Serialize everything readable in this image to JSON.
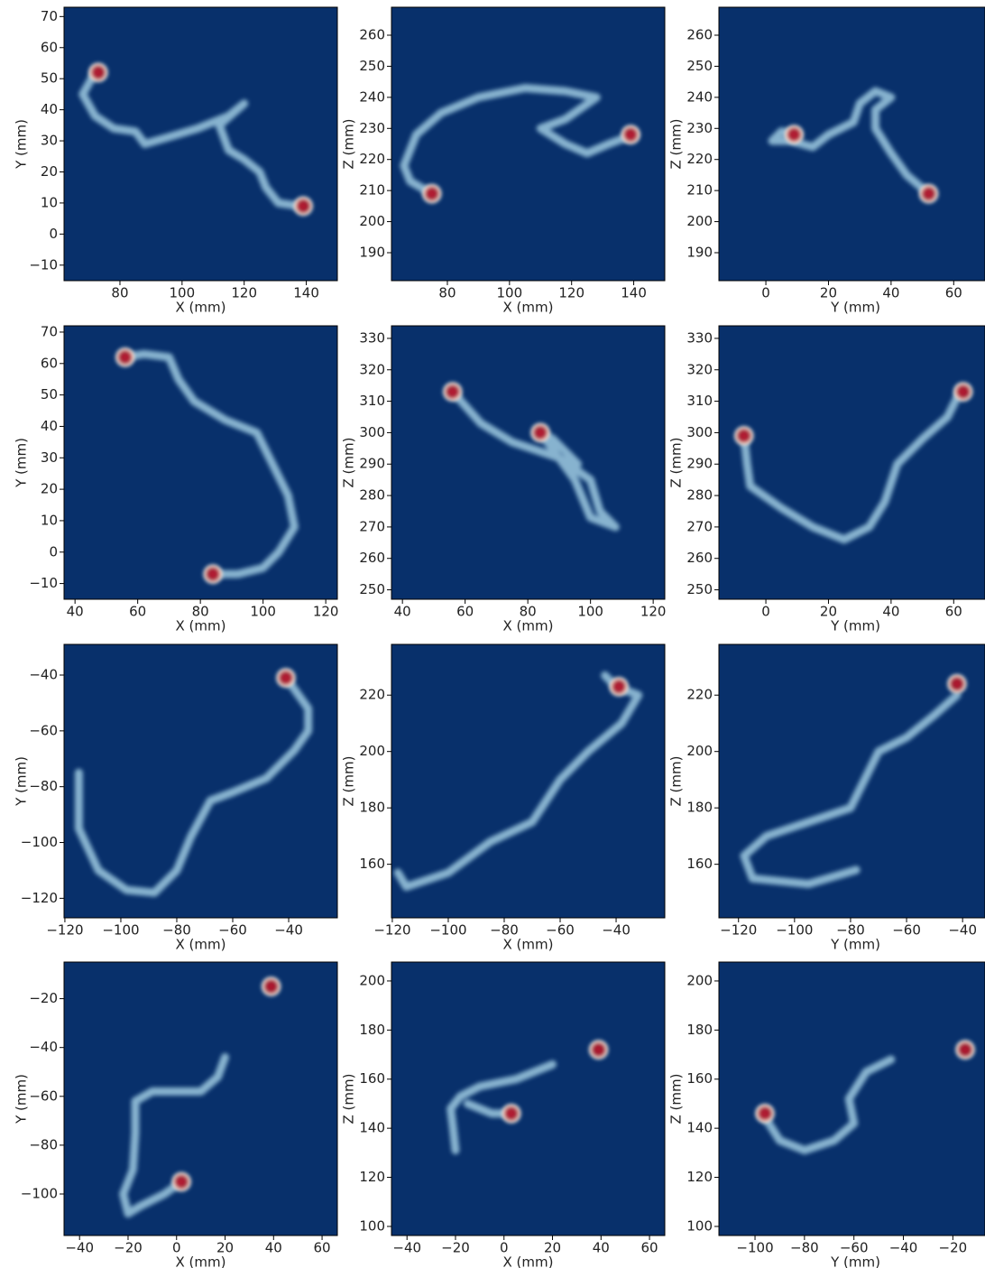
{
  "chart_data": [
    {
      "type": "heatmap",
      "xlabel": "X (mm)",
      "ylabel": "Y (mm)",
      "colors": {
        "background": "#08306b",
        "trace": "#9ecae1",
        "peak": "#b2182b"
      },
      "x": [
        72,
        68,
        72,
        78,
        85,
        88,
        95,
        105,
        115,
        120,
        112,
        115,
        120,
        125,
        127,
        131,
        138
      ],
      "y": [
        52,
        45,
        38,
        34,
        33,
        29,
        31,
        34,
        38,
        42,
        35,
        27,
        24,
        20,
        15,
        10,
        9
      ],
      "hotspots": {
        "x": [
          73,
          139
        ],
        "y": [
          52,
          9
        ]
      },
      "xlim": [
        62,
        150
      ],
      "xticks": [
        80,
        100,
        120,
        140
      ],
      "ylim": [
        -15,
        73
      ],
      "yticks": [
        {
          "value": -10,
          "label": "−10"
        },
        0,
        10,
        20,
        30,
        40,
        50,
        60,
        70
      ]
    },
    {
      "type": "heatmap",
      "xlabel": "X (mm)",
      "ylabel": "Z (mm)",
      "colors": {
        "background": "#08306b",
        "trace": "#9ecae1",
        "peak": "#b2182b"
      },
      "x": [
        75,
        68,
        66,
        70,
        78,
        90,
        105,
        118,
        128,
        118,
        110,
        118,
        125,
        132,
        140
      ],
      "y": [
        209,
        213,
        218,
        228,
        235,
        240,
        243,
        242,
        240,
        233,
        230,
        225,
        222,
        225,
        228
      ],
      "hotspots": {
        "x": [
          75,
          139
        ],
        "y": [
          209,
          228
        ]
      },
      "xlim": [
        62,
        150
      ],
      "xticks": [
        80,
        100,
        120,
        140
      ],
      "ylim": [
        181,
        269
      ],
      "yticks": [
        190,
        200,
        210,
        220,
        230,
        240,
        250,
        260
      ]
    },
    {
      "type": "heatmap",
      "xlabel": "Y (mm)",
      "ylabel": "Z (mm)",
      "colors": {
        "background": "#08306b",
        "trace": "#9ecae1",
        "peak": "#b2182b"
      },
      "x": [
        52,
        45,
        40,
        35,
        35,
        40,
        35,
        30,
        28,
        20,
        15,
        8,
        2,
        5,
        10
      ],
      "y": [
        209,
        215,
        222,
        230,
        236,
        240,
        242,
        238,
        232,
        228,
        224,
        226,
        226,
        229,
        228
      ],
      "hotspots": {
        "x": [
          9,
          52
        ],
        "y": [
          228,
          209
        ]
      },
      "xlim": [
        -15,
        70
      ],
      "xticks": [
        0,
        20,
        40,
        60
      ],
      "ylim": [
        181,
        269
      ],
      "yticks": [
        190,
        200,
        210,
        220,
        230,
        240,
        250,
        260
      ]
    },
    {
      "type": "heatmap",
      "xlabel": "X (mm)",
      "ylabel": "Y (mm)",
      "colors": {
        "background": "#08306b",
        "trace": "#9ecae1",
        "peak": "#b2182b"
      },
      "x": [
        56,
        62,
        70,
        73,
        78,
        88,
        98,
        103,
        108,
        110,
        105,
        100,
        92,
        84
      ],
      "y": [
        62,
        63,
        62,
        55,
        48,
        42,
        38,
        28,
        18,
        8,
        0,
        -5,
        -7,
        -7
      ],
      "hotspots": {
        "x": [
          56,
          84
        ],
        "y": [
          62,
          -7
        ]
      },
      "xlim": [
        36.5,
        123.7
      ],
      "xticks": [
        40,
        60,
        80,
        100,
        120
      ],
      "ylim": [
        -15,
        72
      ],
      "yticks": [
        {
          "value": -10,
          "label": "−10"
        },
        0,
        10,
        20,
        30,
        40,
        50,
        60,
        70
      ]
    },
    {
      "type": "heatmap",
      "xlabel": "X (mm)",
      "ylabel": "Z (mm)",
      "colors": {
        "background": "#08306b",
        "trace": "#9ecae1",
        "peak": "#b2182b"
      },
      "x": [
        56,
        65,
        75,
        90,
        100,
        103,
        108,
        100,
        95,
        84,
        88,
        96
      ],
      "y": [
        313,
        303,
        297,
        292,
        285,
        275,
        270,
        273,
        285,
        300,
        298,
        290
      ],
      "hotspots": {
        "x": [
          56,
          84
        ],
        "y": [
          313,
          300
        ]
      },
      "xlim": [
        36.5,
        123.7
      ],
      "xticks": [
        40,
        60,
        80,
        100,
        120
      ],
      "ylim": [
        247,
        334
      ],
      "yticks": [
        250,
        260,
        270,
        280,
        290,
        300,
        310,
        320,
        330
      ]
    },
    {
      "type": "heatmap",
      "xlabel": "Y (mm)",
      "ylabel": "Z (mm)",
      "colors": {
        "background": "#08306b",
        "trace": "#9ecae1",
        "peak": "#b2182b"
      },
      "x": [
        -7,
        -6,
        -5,
        5,
        15,
        25,
        33,
        38,
        42,
        50,
        58,
        62
      ],
      "y": [
        299,
        290,
        283,
        276,
        270,
        266,
        270,
        278,
        290,
        298,
        305,
        313
      ],
      "hotspots": {
        "x": [
          -7,
          63
        ],
        "y": [
          299,
          313
        ]
      },
      "xlim": [
        -15,
        70
      ],
      "xticks": [
        0,
        20,
        40,
        60
      ],
      "ylim": [
        247,
        334
      ],
      "yticks": [
        250,
        260,
        270,
        280,
        290,
        300,
        310,
        320,
        330
      ]
    },
    {
      "type": "heatmap",
      "xlabel": "X (mm)",
      "ylabel": "Y (mm)",
      "colors": {
        "background": "#08306b",
        "trace": "#9ecae1",
        "peak": "#b2182b"
      },
      "x": [
        -115,
        -115,
        -108,
        -98,
        -88,
        -80,
        -75,
        -68,
        -60,
        -48,
        -38,
        -33,
        -33,
        -38,
        -41
      ],
      "y": [
        -75,
        -95,
        -110,
        -117,
        -118,
        -110,
        -98,
        -85,
        -82,
        -77,
        -67,
        -60,
        -52,
        -45,
        -41
      ],
      "hotspots": {
        "x": [
          -41
        ],
        "y": [
          -41
        ]
      },
      "xlim": [
        -120.3,
        -22.6
      ],
      "xticks": [
        {
          "value": -120,
          "label": "−120"
        },
        {
          "value": -100,
          "label": "−100"
        },
        {
          "value": -80,
          "label": "−80"
        },
        {
          "value": -60,
          "label": "−60"
        },
        {
          "value": -40,
          "label": "−40"
        }
      ],
      "ylim": [
        -127,
        -29
      ],
      "yticks": [
        {
          "value": -120,
          "label": "−120"
        },
        {
          "value": -100,
          "label": "−100"
        },
        {
          "value": -80,
          "label": "−80"
        },
        {
          "value": -60,
          "label": "−60"
        },
        {
          "value": -40,
          "label": "−40"
        }
      ]
    },
    {
      "type": "heatmap",
      "xlabel": "X (mm)",
      "ylabel": "Z (mm)",
      "colors": {
        "background": "#08306b",
        "trace": "#9ecae1",
        "peak": "#b2182b"
      },
      "x": [
        -118,
        -115,
        -100,
        -85,
        -70,
        -60,
        -50,
        -38,
        -32,
        -40,
        -44
      ],
      "y": [
        157,
        152,
        157,
        168,
        175,
        190,
        200,
        210,
        220,
        223,
        227
      ],
      "hotspots": {
        "x": [
          -39
        ],
        "y": [
          223
        ]
      },
      "xlim": [
        -120.3,
        -22.6
      ],
      "xticks": [
        {
          "value": -120,
          "label": "−120"
        },
        {
          "value": -100,
          "label": "−100"
        },
        {
          "value": -80,
          "label": "−80"
        },
        {
          "value": -60,
          "label": "−60"
        },
        {
          "value": -40,
          "label": "−40"
        }
      ],
      "ylim": [
        141,
        238
      ],
      "yticks": [
        160,
        180,
        200,
        220
      ]
    },
    {
      "type": "heatmap",
      "xlabel": "Y (mm)",
      "ylabel": "Z (mm)",
      "colors": {
        "background": "#08306b",
        "trace": "#9ecae1",
        "peak": "#b2182b"
      },
      "x": [
        -78,
        -95,
        -115,
        -118,
        -110,
        -95,
        -80,
        -75,
        -70,
        -60,
        -50,
        -42
      ],
      "y": [
        158,
        153,
        155,
        163,
        170,
        175,
        180,
        190,
        200,
        205,
        213,
        220
      ],
      "hotspots": {
        "x": [
          -42
        ],
        "y": [
          224
        ]
      },
      "xlim": [
        -127,
        -32
      ],
      "xticks": [
        {
          "value": -120,
          "label": "−120"
        },
        {
          "value": -100,
          "label": "−100"
        },
        {
          "value": -80,
          "label": "−80"
        },
        {
          "value": -60,
          "label": "−60"
        },
        {
          "value": -40,
          "label": "−40"
        }
      ],
      "ylim": [
        141,
        238
      ],
      "yticks": [
        160,
        180,
        200,
        220
      ]
    },
    {
      "type": "heatmap",
      "xlabel": "X (mm)",
      "ylabel": "Y (mm)",
      "colors": {
        "background": "#08306b",
        "trace": "#9ecae1",
        "peak": "#b2182b"
      },
      "x": [
        2,
        -5,
        -15,
        -20,
        -22,
        -18,
        -17,
        -17,
        -10,
        0,
        10,
        17,
        20
      ],
      "y": [
        -95,
        -100,
        -105,
        -108,
        -100,
        -90,
        -75,
        -62,
        -58,
        -58,
        -58,
        -52,
        -44
      ],
      "hotspots": {
        "x": [
          2,
          39
        ],
        "y": [
          -95,
          -15
        ]
      },
      "xlim": [
        -46.4,
        66.3
      ],
      "xticks": [
        {
          "value": -40,
          "label": "−40"
        },
        {
          "value": -20,
          "label": "−20"
        },
        0,
        20,
        40,
        60
      ],
      "ylim": [
        -117,
        -5
      ],
      "yticks": [
        {
          "value": -100,
          "label": "−100"
        },
        {
          "value": -80,
          "label": "−80"
        },
        {
          "value": -60,
          "label": "−60"
        },
        {
          "value": -40,
          "label": "−40"
        },
        {
          "value": -20,
          "label": "−20"
        }
      ]
    },
    {
      "type": "heatmap",
      "xlabel": "X (mm)",
      "ylabel": "Z (mm)",
      "colors": {
        "background": "#08306b",
        "trace": "#9ecae1",
        "peak": "#b2182b"
      },
      "x": [
        -20,
        -21,
        -22,
        -18,
        -10,
        5,
        20,
        null,
        -15,
        -5,
        3
      ],
      "y": [
        131,
        140,
        148,
        153,
        157,
        160,
        166,
        null,
        150,
        146,
        146
      ],
      "hotspots": {
        "x": [
          3,
          39
        ],
        "y": [
          146,
          172
        ]
      },
      "xlim": [
        -46.4,
        66.3
      ],
      "xticks": [
        {
          "value": -40,
          "label": "−40"
        },
        {
          "value": -20,
          "label": "−20"
        },
        0,
        20,
        40,
        60
      ],
      "ylim": [
        96.3,
        207.7
      ],
      "yticks": [
        100,
        120,
        140,
        160,
        180,
        200
      ]
    },
    {
      "type": "heatmap",
      "xlabel": "Y (mm)",
      "ylabel": "Z (mm)",
      "colors": {
        "background": "#08306b",
        "trace": "#9ecae1",
        "peak": "#b2182b"
      },
      "x": [
        -97,
        -90,
        -80,
        -68,
        -60,
        -62,
        -55,
        -45
      ],
      "y": [
        146,
        135,
        131,
        135,
        142,
        152,
        163,
        168
      ],
      "hotspots": {
        "x": [
          -96,
          -15
        ],
        "y": [
          146,
          172
        ]
      },
      "xlim": [
        -114.6,
        -7
      ],
      "xticks": [
        {
          "value": -100,
          "label": "−100"
        },
        {
          "value": -80,
          "label": "−80"
        },
        {
          "value": -60,
          "label": "−60"
        },
        {
          "value": -40,
          "label": "−40"
        },
        {
          "value": -20,
          "label": "−20"
        }
      ],
      "ylim": [
        96.3,
        207.7
      ],
      "yticks": [
        100,
        120,
        140,
        160,
        180,
        200
      ]
    }
  ]
}
